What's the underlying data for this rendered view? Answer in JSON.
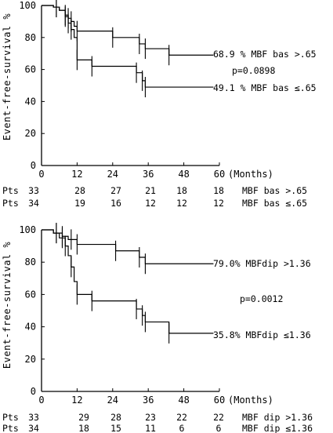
{
  "chart_data": [
    {
      "type": "line",
      "step": true,
      "ylabel": "Event-free-survival %",
      "xunit": "(Months)",
      "xlim": [
        0,
        60
      ],
      "ylim": [
        0,
        100
      ],
      "xticks": [
        0,
        12,
        24,
        36,
        48,
        60
      ],
      "yticks": [
        0,
        20,
        40,
        60,
        80,
        100
      ],
      "series": [
        {
          "name": "68.9 % MBF bas >.65",
          "x": [
            0,
            4,
            6,
            8,
            9,
            10,
            11,
            12,
            24,
            33,
            35,
            43,
            58
          ],
          "y": [
            100,
            99,
            97,
            94,
            92,
            90,
            87,
            84,
            80,
            76,
            73,
            69,
            68.9
          ],
          "error_x": [
            5,
            8,
            9,
            10,
            12,
            24,
            33,
            35,
            43
          ]
        },
        {
          "name": "49.1 % MBF bas ≤.65",
          "x": [
            0,
            4,
            6,
            8,
            9,
            10,
            11,
            12,
            17,
            32,
            34,
            35,
            58
          ],
          "y": [
            100,
            99,
            97,
            93,
            89,
            85,
            80,
            66,
            62,
            58,
            53,
            49,
            49.1
          ],
          "error_x": [
            5,
            8,
            9,
            10,
            12,
            17,
            32,
            34,
            35
          ]
        }
      ],
      "annotation": "p=0.0898",
      "risk_table": {
        "label": "Pts",
        "rows": [
          {
            "values": [
              "33",
              "28",
              "27",
              "21",
              "18",
              "18"
            ],
            "group": "MBF bas >.65"
          },
          {
            "values": [
              "34",
              "19",
              "16",
              "12",
              "12",
              "12"
            ],
            "group": "MBF bas ≤.65"
          }
        ]
      }
    },
    {
      "type": "line",
      "step": true,
      "ylabel": "Event-free-survival %",
      "xunit": "(Months)",
      "xlim": [
        0,
        60
      ],
      "ylim": [
        0,
        100
      ],
      "xticks": [
        0,
        12,
        24,
        36,
        48,
        60
      ],
      "yticks": [
        0,
        20,
        40,
        60,
        80,
        100
      ],
      "series": [
        {
          "name": "79.0% MBFdip >1.36",
          "x": [
            0,
            4,
            7,
            9,
            12,
            25,
            33,
            35,
            58
          ],
          "y": [
            100,
            98,
            96,
            94,
            91,
            87,
            83,
            79,
            79.0
          ],
          "error_x": [
            5,
            7,
            10,
            12,
            25,
            33,
            35
          ]
        },
        {
          "name": "35.8% MBFdip ≤1.36",
          "x": [
            0,
            4,
            6,
            8,
            9,
            10,
            11,
            12,
            17,
            32,
            34,
            35,
            43,
            58
          ],
          "y": [
            100,
            98,
            95,
            90,
            84,
            77,
            68,
            60,
            56,
            51,
            47,
            43,
            36,
            35.8
          ],
          "error_x": [
            5,
            7,
            8,
            10,
            12,
            17,
            32,
            34,
            35,
            43
          ]
        }
      ],
      "annotation": "p=0.0012",
      "risk_table": {
        "label": "Pts",
        "rows": [
          {
            "values": [
              "33",
              "29",
              "28",
              "23",
              "22",
              "22"
            ],
            "group": "MBF dip >1.36"
          },
          {
            "values": [
              "34",
              "18",
              "15",
              "11",
              "6",
              "6"
            ],
            "group": "MBF dip ≤1.36"
          }
        ]
      }
    }
  ]
}
